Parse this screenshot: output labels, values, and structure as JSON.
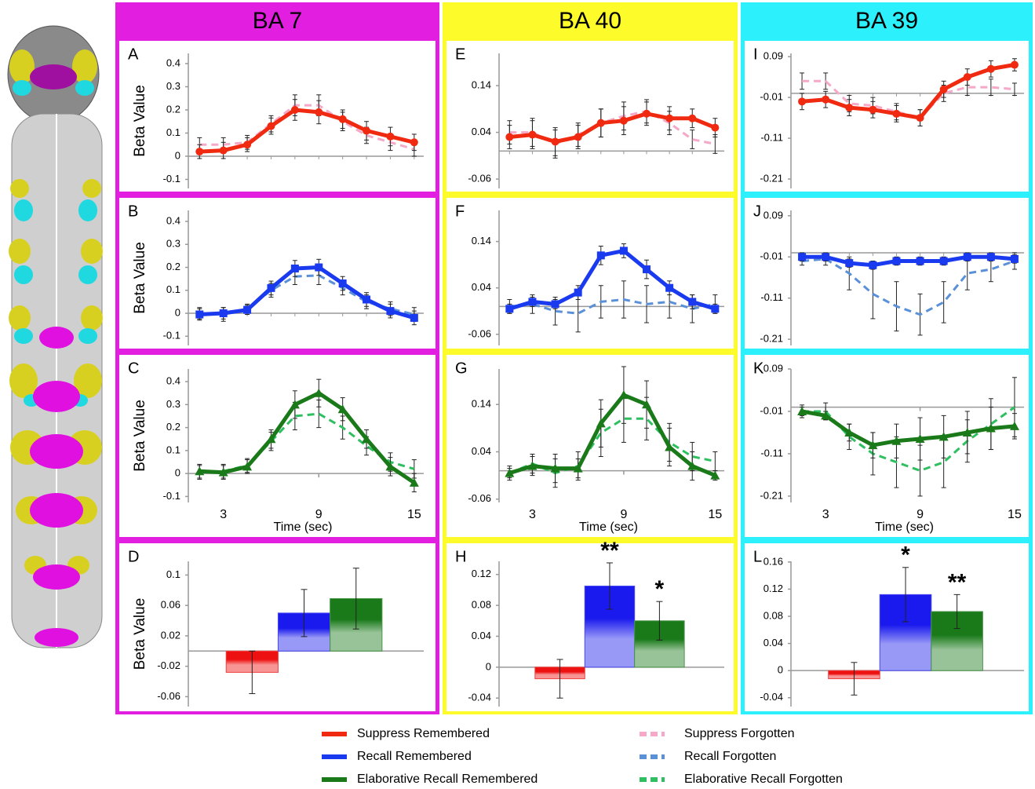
{
  "columns": [
    {
      "title": "BA 7",
      "color": "#e21ee0"
    },
    {
      "title": "BA 40",
      "color": "#fdfc2a"
    },
    {
      "title": "BA 39",
      "color": "#2cf0fb"
    }
  ],
  "chart_data": [
    {
      "type": "line",
      "label": "A",
      "ylabel": "Beta Value",
      "x": [
        1.5,
        3,
        4.5,
        6,
        7.5,
        9,
        10.5,
        12,
        13.5,
        15
      ],
      "xlim": [
        0.4,
        15.6
      ],
      "ylim": [
        -0.139,
        0.444
      ],
      "yticks": [
        -0.1,
        0,
        0.1,
        0.2,
        0.3,
        0.4
      ],
      "series": [
        {
          "name": "Suppress Remembered",
          "color": "#f02a10",
          "marker": "circle",
          "values": [
            0.02,
            0.025,
            0.05,
            0.13,
            0.2,
            0.19,
            0.16,
            0.11,
            0.085,
            0.06
          ],
          "errors": [
            0.03,
            0.035,
            0.03,
            0.035,
            0.045,
            0.05,
            0.04,
            0.04,
            0.04,
            0.035
          ]
        },
        {
          "name": "Suppress Forgotten",
          "color": "#f5a8c8",
          "dash": true,
          "values": [
            0.05,
            0.05,
            0.06,
            0.14,
            0.22,
            0.22,
            0.15,
            0.09,
            0.06,
            0.03
          ],
          "errors": [
            0.03,
            0.03,
            0.03,
            0.035,
            0.045,
            0.045,
            0.04,
            0.035,
            0.035,
            0.03
          ]
        }
      ]
    },
    {
      "type": "line",
      "label": "B",
      "ylabel": "Beta Value",
      "x": [
        1.5,
        3,
        4.5,
        6,
        7.5,
        9,
        10.5,
        12,
        13.5,
        15
      ],
      "xlim": [
        0.4,
        15.6
      ],
      "ylim": [
        -0.14,
        0.448
      ],
      "yticks": [
        -0.1,
        0,
        0.1,
        0.2,
        0.3,
        0.4
      ],
      "series": [
        {
          "name": "Recall Remembered",
          "color": "#1a3af0",
          "marker": "square",
          "values": [
            -0.005,
            0,
            0.015,
            0.11,
            0.195,
            0.2,
            0.13,
            0.06,
            0.01,
            -0.02
          ],
          "errors": [
            0.025,
            0.025,
            0.02,
            0.03,
            0.035,
            0.035,
            0.03,
            0.03,
            0.03,
            0.03
          ]
        },
        {
          "name": "Recall Forgotten",
          "color": "#5a90d8",
          "dash": true,
          "values": [
            0,
            -0.005,
            0.02,
            0.1,
            0.16,
            0.165,
            0.11,
            0.05,
            0.02,
            -0.005
          ],
          "errors": [
            0.025,
            0.03,
            0.02,
            0.03,
            0.035,
            0.04,
            0.03,
            0.03,
            0.03,
            0.03
          ]
        }
      ]
    },
    {
      "type": "line",
      "label": "C",
      "ylabel": "Beta Value",
      "xlabel": "Time (sec)",
      "x": [
        1.5,
        3,
        4.5,
        6,
        7.5,
        9,
        10.5,
        12,
        13.5,
        15
      ],
      "xlim": [
        0.4,
        15.6
      ],
      "xticks": [
        3,
        9,
        15
      ],
      "ylim": [
        -0.126,
        0.455
      ],
      "yticks": [
        -0.1,
        0,
        0.1,
        0.2,
        0.3,
        0.4
      ],
      "series": [
        {
          "name": "Elaborative Recall Remembered",
          "color": "#1a7a1a",
          "marker": "triangle",
          "values": [
            0.01,
            0.005,
            0.03,
            0.15,
            0.3,
            0.35,
            0.28,
            0.15,
            0.03,
            -0.04
          ],
          "errors": [
            0.03,
            0.03,
            0.03,
            0.04,
            0.06,
            0.06,
            0.05,
            0.04,
            0.04,
            0.04
          ]
        },
        {
          "name": "Elaborative Recall Forgotten",
          "color": "#2ec060",
          "dash": true,
          "values": [
            0.005,
            0.01,
            0.035,
            0.14,
            0.25,
            0.26,
            0.2,
            0.12,
            0.05,
            0.02
          ],
          "errors": [
            0.03,
            0.03,
            0.03,
            0.04,
            0.06,
            0.06,
            0.05,
            0.04,
            0.04,
            0.04
          ]
        }
      ]
    },
    {
      "type": "bar",
      "label": "D",
      "ylabel": "Beta Value",
      "ylim": [
        -0.073,
        0.118
      ],
      "yticks": [
        -0.06,
        -0.02,
        0.02,
        0.06,
        0.1
      ],
      "values": [
        -0.028,
        0.05,
        0.069
      ],
      "errors": [
        0.028,
        0.031,
        0.04
      ],
      "colors": [
        "#ee1111",
        "#1a1aee",
        "#1a7a1a"
      ]
    },
    {
      "type": "line",
      "label": "E",
      "x": [
        1.5,
        3,
        4.5,
        6,
        7.5,
        9,
        10.5,
        12,
        13.5,
        15
      ],
      "xlim": [
        0.4,
        15.6
      ],
      "ylim": [
        -0.08,
        0.209
      ],
      "yticks": [
        -0.06,
        0.04,
        0.14
      ],
      "series": [
        {
          "name": "Suppress Remembered",
          "color": "#f02a10",
          "marker": "circle",
          "values": [
            0.03,
            0.035,
            0.02,
            0.03,
            0.06,
            0.065,
            0.08,
            0.07,
            0.07,
            0.05
          ],
          "errors": [
            0.025,
            0.03,
            0.03,
            0.025,
            0.03,
            0.03,
            0.025,
            0.025,
            0.02,
            0.02
          ]
        },
        {
          "name": "Suppress Forgotten",
          "color": "#f5a8c8",
          "dash": true,
          "values": [
            0.04,
            0.04,
            0.015,
            0.035,
            0.06,
            0.075,
            0.085,
            0.06,
            0.025,
            0.015
          ],
          "errors": [
            0.025,
            0.03,
            0.03,
            0.025,
            0.03,
            0.03,
            0.025,
            0.025,
            0.02,
            0.02
          ]
        }
      ]
    },
    {
      "type": "line",
      "label": "F",
      "x": [
        1.5,
        3,
        4.5,
        6,
        7.5,
        9,
        10.5,
        12,
        13.5,
        15
      ],
      "xlim": [
        0.4,
        15.6
      ],
      "ylim": [
        -0.084,
        0.207
      ],
      "yticks": [
        -0.06,
        0.04,
        0.14
      ],
      "series": [
        {
          "name": "Recall Remembered",
          "color": "#1a3af0",
          "marker": "square",
          "values": [
            -0.005,
            0.01,
            0.005,
            0.03,
            0.11,
            0.12,
            0.08,
            0.04,
            0.01,
            -0.005
          ],
          "errors": [
            0.01,
            0.01,
            0.01,
            0.015,
            0.02,
            0.015,
            0.02,
            0.015,
            0.015,
            0.01
          ]
        },
        {
          "name": "Recall Forgotten",
          "color": "#5a90d8",
          "dash": true,
          "values": [
            0,
            0.005,
            -0.01,
            -0.015,
            0.01,
            0.015,
            0.005,
            0.01,
            -0.005,
            0.005
          ],
          "errors": [
            0.015,
            0.02,
            0.03,
            0.04,
            0.035,
            0.04,
            0.04,
            0.035,
            0.03,
            0.02
          ]
        }
      ]
    },
    {
      "type": "line",
      "label": "G",
      "xlabel": "Time (sec)",
      "x": [
        1.5,
        3,
        4.5,
        6,
        7.5,
        9,
        10.5,
        12,
        13.5,
        15
      ],
      "xlim": [
        0.4,
        15.6
      ],
      "xticks": [
        3,
        9,
        15
      ],
      "ylim": [
        -0.067,
        0.215
      ],
      "yticks": [
        -0.06,
        0.04,
        0.14
      ],
      "series": [
        {
          "name": "Elaborative Recall Remembered",
          "color": "#1a7a1a",
          "marker": "triangle",
          "values": [
            -0.005,
            0.01,
            0.005,
            0.005,
            0.1,
            0.16,
            0.14,
            0.05,
            0.01,
            -0.01
          ],
          "errors": [
            0.01,
            0.02,
            0.03,
            0.02,
            0.05,
            0.06,
            0.05,
            0.04,
            0.03,
            0.01
          ]
        },
        {
          "name": "Elaborative Recall Forgotten",
          "color": "#2ec060",
          "dash": true,
          "values": [
            -0.005,
            0.015,
            -0.005,
            0.01,
            0.08,
            0.11,
            0.11,
            0.06,
            0.03,
            0.02
          ],
          "errors": [
            0.015,
            0.02,
            0.03,
            0.03,
            0.05,
            0.05,
            0.045,
            0.04,
            0.03,
            0.02
          ]
        }
      ]
    },
    {
      "type": "bar",
      "label": "H",
      "ylim": [
        -0.051,
        0.137
      ],
      "yticks": [
        -0.04,
        0,
        0.04,
        0.08,
        0.12
      ],
      "values": [
        -0.015,
        0.105,
        0.06
      ],
      "errors": [
        0.025,
        0.03,
        0.025
      ],
      "significance": [
        null,
        "**",
        "*"
      ],
      "colors": [
        "#ee1111",
        "#1a1aee",
        "#1a7a1a"
      ]
    },
    {
      "type": "line",
      "label": "I",
      "x": [
        1.5,
        3,
        4.5,
        6,
        7.5,
        9,
        10.5,
        12,
        13.5,
        15
      ],
      "xlim": [
        0.4,
        15.6
      ],
      "ylim": [
        -0.233,
        0.098
      ],
      "yticks": [
        -0.21,
        -0.11,
        -0.01,
        0.09
      ],
      "series": [
        {
          "name": "Suppress Remembered",
          "color": "#f02a10",
          "marker": "circle",
          "values": [
            -0.02,
            -0.015,
            -0.035,
            -0.04,
            -0.05,
            -0.06,
            0.01,
            0.04,
            0.06,
            0.07
          ],
          "errors": [
            0.02,
            0.02,
            0.02,
            0.02,
            0.02,
            0.02,
            0.02,
            0.02,
            0.02,
            0.015
          ]
        },
        {
          "name": "Suppress Forgotten",
          "color": "#f5a8c8",
          "dash": true,
          "values": [
            0.03,
            0.03,
            -0.025,
            -0.03,
            -0.045,
            -0.06,
            0,
            0.015,
            0.015,
            0.01
          ],
          "errors": [
            0.02,
            0.02,
            0.02,
            0.02,
            0.02,
            0.02,
            0.02,
            0.02,
            0.02,
            0.015
          ]
        }
      ]
    },
    {
      "type": "line",
      "label": "J",
      "x": [
        1.5,
        3,
        4.5,
        6,
        7.5,
        9,
        10.5,
        12,
        13.5,
        15
      ],
      "xlim": [
        0.4,
        15.6
      ],
      "ylim": [
        -0.225,
        0.103
      ],
      "yticks": [
        -0.21,
        -0.11,
        -0.01,
        0.09
      ],
      "series": [
        {
          "name": "Recall Remembered",
          "color": "#1a3af0",
          "marker": "square",
          "values": [
            -0.01,
            -0.01,
            -0.025,
            -0.03,
            -0.02,
            -0.02,
            -0.02,
            -0.01,
            -0.01,
            -0.015
          ],
          "errors": [
            0.01,
            0.01,
            0.01,
            0.01,
            0.01,
            0.01,
            0.01,
            0.01,
            0.01,
            0.01
          ]
        },
        {
          "name": "Recall Forgotten",
          "color": "#5a90d8",
          "dash": true,
          "values": [
            -0.02,
            -0.015,
            -0.05,
            -0.1,
            -0.13,
            -0.15,
            -0.12,
            -0.05,
            -0.04,
            -0.02
          ],
          "errors": [
            0.01,
            0.015,
            0.04,
            0.06,
            0.06,
            0.05,
            0.05,
            0.04,
            0.03,
            0.02
          ]
        }
      ]
    },
    {
      "type": "line",
      "label": "K",
      "xlabel": "Time (sec)",
      "x": [
        1.5,
        3,
        4.5,
        6,
        7.5,
        9,
        10.5,
        12,
        13.5,
        15
      ],
      "xlim": [
        0.4,
        15.6
      ],
      "xticks": [
        3,
        9,
        15
      ],
      "ylim": [
        -0.225,
        0.09
      ],
      "yticks": [
        -0.21,
        -0.11,
        -0.01,
        0.09
      ],
      "series": [
        {
          "name": "Elaborative Recall Remembered",
          "color": "#1a7a1a",
          "marker": "triangle",
          "values": [
            -0.01,
            -0.02,
            -0.06,
            -0.09,
            -0.08,
            -0.075,
            -0.07,
            -0.06,
            -0.05,
            -0.045
          ],
          "errors": [
            0.01,
            0.01,
            0.02,
            0.03,
            0.04,
            0.05,
            0.05,
            0.05,
            0.05,
            0.03
          ]
        },
        {
          "name": "Elaborative Recall Forgotten",
          "color": "#2ec060",
          "dash": true,
          "values": [
            -0.01,
            -0.01,
            -0.07,
            -0.11,
            -0.13,
            -0.15,
            -0.13,
            -0.08,
            -0.04,
            0
          ],
          "errors": [
            0.015,
            0.02,
            0.03,
            0.05,
            0.06,
            0.06,
            0.06,
            0.05,
            0.06,
            0.07
          ]
        }
      ]
    },
    {
      "type": "bar",
      "label": "L",
      "ylim": [
        -0.053,
        0.161
      ],
      "yticks": [
        -0.04,
        0,
        0.04,
        0.08,
        0.12,
        0.16
      ],
      "values": [
        -0.012,
        0.112,
        0.087
      ],
      "errors": [
        0.024,
        0.04,
        0.025
      ],
      "significance": [
        null,
        "*",
        "**"
      ],
      "colors": [
        "#ee1111",
        "#1a1aee",
        "#1a7a1a"
      ]
    }
  ]
}
